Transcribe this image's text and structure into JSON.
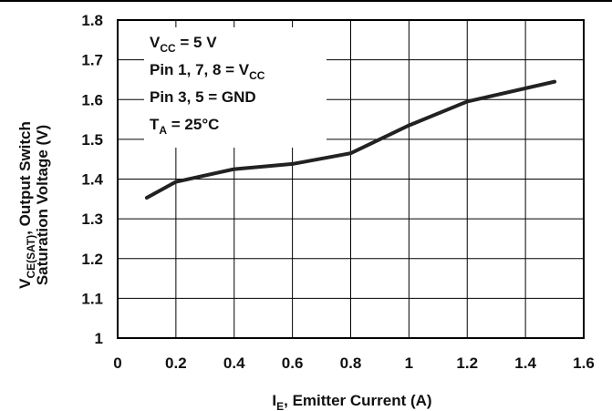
{
  "chart_data": {
    "type": "line",
    "title": "",
    "xlabel": {
      "main": "I",
      "sub": "E",
      "rest": ", Emitter Current (A)"
    },
    "ylabel": {
      "line1": {
        "main": "V",
        "sub": "CE(SAT)",
        "rest": ", Output Switch"
      },
      "line2": "Saturation Voltage (V)"
    },
    "xlim": [
      0,
      1.6
    ],
    "ylim": [
      1,
      1.8
    ],
    "x_ticks": [
      0,
      0.2,
      0.4,
      0.6,
      0.8,
      1,
      1.2,
      1.4,
      1.6
    ],
    "x_tick_labels": [
      "0",
      "0.2",
      "0.4",
      "0.6",
      "0.8",
      "1",
      "1.2",
      "1.4",
      "1.6"
    ],
    "y_ticks": [
      1,
      1.1,
      1.2,
      1.3,
      1.4,
      1.5,
      1.6,
      1.7,
      1.8
    ],
    "y_tick_labels": [
      "1",
      "1.1",
      "1.2",
      "1.3",
      "1.4",
      "1.5",
      "1.6",
      "1.7",
      "1.8"
    ],
    "grid": true,
    "series": [
      {
        "x": [
          0.1,
          0.2,
          0.4,
          0.6,
          0.8,
          1.0,
          1.2,
          1.5
        ],
        "y": [
          1.353,
          1.393,
          1.425,
          1.438,
          1.465,
          1.535,
          1.595,
          1.645
        ]
      }
    ],
    "annotations": [
      {
        "main": "V",
        "sub": "CC",
        "rest": " = 5 V"
      },
      {
        "main": "Pin 1, 7, 8 = V",
        "sub": "CC",
        "rest": ""
      },
      {
        "main": "Pin 3, 5 = GND",
        "sub": "",
        "rest": ""
      },
      {
        "main": "T",
        "sub": "A",
        "rest": " = 25°C"
      }
    ],
    "colors": {
      "line": "#222222",
      "grid": "#000000",
      "frame": "#000000"
    }
  }
}
